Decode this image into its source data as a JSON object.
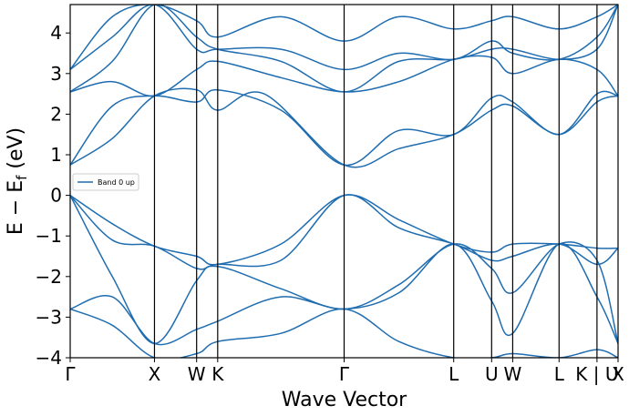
{
  "chart_data": {
    "type": "line",
    "xlabel": "Wave Vector",
    "ylabel_main": "E − E",
    "ylabel_sub": "f",
    "ylabel_unit": " (eV)",
    "ylim": [
      -4,
      4.7
    ],
    "yticks": [
      -4,
      -3,
      -2,
      -1,
      0,
      1,
      2,
      3,
      4
    ],
    "ytick_labels": [
      "−4",
      "−3",
      "−2",
      "−1",
      "0",
      "1",
      "2",
      "3",
      "4"
    ],
    "kpoints": [
      {
        "label": "Γ",
        "x": 0
      },
      {
        "label": "X",
        "x": 1.0
      },
      {
        "label": "W",
        "x": 1.5
      },
      {
        "label": "K",
        "x": 1.75
      },
      {
        "label": "Γ",
        "x": 3.25
      },
      {
        "label": "L",
        "x": 4.55
      },
      {
        "label": "U",
        "x": 5.0
      },
      {
        "label": "W",
        "x": 5.25
      },
      {
        "label": "L",
        "x": 5.8
      },
      {
        "label": "K | U",
        "x": 6.25
      },
      {
        "label": "X",
        "x": 6.5
      }
    ],
    "xlim": [
      0,
      6.5
    ],
    "legend": {
      "placement": "center-left",
      "entries": [
        {
          "name": "Band 0 up",
          "color": "#1f6db0"
        }
      ]
    },
    "band_color": "#1f6db0",
    "series": [
      {
        "values": [
          [
            0,
            0.75
          ],
          [
            0.5,
            1.4
          ],
          [
            1.0,
            2.45
          ],
          [
            1.5,
            2.6
          ],
          [
            1.75,
            2.1
          ],
          [
            2.3,
            2.5
          ],
          [
            3.25,
            0.75
          ],
          [
            3.9,
            1.15
          ],
          [
            4.55,
            1.5
          ],
          [
            5.0,
            2.1
          ],
          [
            5.25,
            2.2
          ],
          [
            5.8,
            1.5
          ],
          [
            6.25,
            2.3
          ],
          [
            6.5,
            2.45
          ]
        ]
      },
      {
        "values": [
          [
            0,
            0.75
          ],
          [
            0.5,
            2.2
          ],
          [
            1.0,
            2.45
          ],
          [
            1.5,
            2.3
          ],
          [
            1.75,
            2.6
          ],
          [
            2.5,
            2.1
          ],
          [
            3.25,
            0.75
          ],
          [
            3.9,
            1.6
          ],
          [
            4.55,
            1.5
          ],
          [
            5.0,
            2.4
          ],
          [
            5.25,
            2.3
          ],
          [
            5.8,
            1.5
          ],
          [
            6.25,
            2.5
          ],
          [
            6.5,
            2.45
          ]
        ]
      },
      {
        "values": [
          [
            0,
            2.55
          ],
          [
            0.5,
            2.8
          ],
          [
            1.0,
            2.45
          ],
          [
            1.5,
            3.1
          ],
          [
            1.75,
            3.3
          ],
          [
            2.5,
            2.9
          ],
          [
            3.25,
            2.55
          ],
          [
            3.9,
            2.8
          ],
          [
            4.55,
            3.35
          ],
          [
            5.0,
            3.4
          ],
          [
            5.25,
            3.0
          ],
          [
            5.8,
            3.35
          ],
          [
            6.25,
            3.1
          ],
          [
            6.5,
            2.45
          ]
        ]
      },
      {
        "values": [
          [
            0,
            2.55
          ],
          [
            0.5,
            3.3
          ],
          [
            1.0,
            4.7
          ],
          [
            1.5,
            3.9
          ],
          [
            1.75,
            3.6
          ],
          [
            2.5,
            3.3
          ],
          [
            3.25,
            2.55
          ],
          [
            3.9,
            3.3
          ],
          [
            4.55,
            3.35
          ],
          [
            5.0,
            3.6
          ],
          [
            5.25,
            3.6
          ],
          [
            5.8,
            3.35
          ],
          [
            6.25,
            3.6
          ],
          [
            6.5,
            4.7
          ]
        ]
      },
      {
        "values": [
          [
            0,
            3.1
          ],
          [
            0.5,
            3.9
          ],
          [
            1.0,
            4.7
          ],
          [
            1.5,
            3.6
          ],
          [
            1.75,
            3.6
          ],
          [
            2.5,
            3.6
          ],
          [
            3.25,
            3.1
          ],
          [
            3.9,
            3.5
          ],
          [
            4.55,
            3.35
          ],
          [
            5.0,
            3.8
          ],
          [
            5.25,
            3.5
          ],
          [
            5.8,
            3.35
          ],
          [
            6.25,
            3.9
          ],
          [
            6.5,
            4.7
          ]
        ]
      },
      {
        "values": [
          [
            0,
            3.1
          ],
          [
            0.5,
            4.4
          ],
          [
            1.0,
            4.7
          ],
          [
            1.5,
            4.3
          ],
          [
            1.75,
            3.9
          ],
          [
            2.5,
            4.4
          ],
          [
            3.25,
            3.8
          ],
          [
            3.9,
            4.4
          ],
          [
            4.55,
            4.1
          ],
          [
            5.0,
            4.3
          ],
          [
            5.25,
            4.4
          ],
          [
            5.8,
            4.1
          ],
          [
            6.25,
            4.4
          ],
          [
            6.5,
            4.7
          ]
        ]
      },
      {
        "values": [
          [
            0,
            0
          ],
          [
            0.5,
            -0.7
          ],
          [
            1.0,
            -1.25
          ],
          [
            1.5,
            -1.5
          ],
          [
            1.75,
            -1.7
          ],
          [
            2.5,
            -1.2
          ],
          [
            3.25,
            0
          ],
          [
            3.9,
            -0.6
          ],
          [
            4.55,
            -1.2
          ],
          [
            5.0,
            -1.4
          ],
          [
            5.25,
            -1.2
          ],
          [
            5.8,
            -1.2
          ],
          [
            6.25,
            -1.3
          ],
          [
            6.5,
            -1.3
          ]
        ]
      },
      {
        "values": [
          [
            0,
            0
          ],
          [
            0.5,
            -1.1
          ],
          [
            1.0,
            -1.25
          ],
          [
            1.5,
            -1.8
          ],
          [
            1.75,
            -1.7
          ],
          [
            2.5,
            -1.6
          ],
          [
            3.25,
            0
          ],
          [
            3.9,
            -0.8
          ],
          [
            4.55,
            -1.2
          ],
          [
            5.0,
            -1.6
          ],
          [
            5.25,
            -1.5
          ],
          [
            5.8,
            -1.2
          ],
          [
            6.25,
            -1.7
          ],
          [
            6.5,
            -1.3
          ]
        ]
      },
      {
        "values": [
          [
            0,
            0
          ],
          [
            0.5,
            -2.0
          ],
          [
            1.0,
            -3.65
          ],
          [
            1.5,
            -2.1
          ],
          [
            1.75,
            -1.75
          ],
          [
            2.5,
            -2.3
          ],
          [
            3.25,
            -2.8
          ],
          [
            3.9,
            -2.2
          ],
          [
            4.55,
            -1.2
          ],
          [
            5.0,
            -1.8
          ],
          [
            5.25,
            -2.4
          ],
          [
            5.8,
            -1.2
          ],
          [
            6.25,
            -1.6
          ],
          [
            6.5,
            -3.65
          ]
        ]
      },
      {
        "values": [
          [
            0,
            -2.8
          ],
          [
            0.5,
            -2.5
          ],
          [
            1.0,
            -3.65
          ],
          [
            1.5,
            -3.3
          ],
          [
            1.75,
            -3.1
          ],
          [
            2.5,
            -2.5
          ],
          [
            3.25,
            -2.8
          ],
          [
            3.9,
            -2.4
          ],
          [
            4.55,
            -1.2
          ],
          [
            5.0,
            -2.6
          ],
          [
            5.25,
            -3.4
          ],
          [
            5.8,
            -1.2
          ],
          [
            6.25,
            -2.5
          ],
          [
            6.5,
            -3.65
          ]
        ]
      },
      {
        "values": [
          [
            0,
            -2.8
          ],
          [
            0.5,
            -3.2
          ],
          [
            1.0,
            -4.0
          ],
          [
            1.5,
            -3.9
          ],
          [
            1.75,
            -3.6
          ],
          [
            2.5,
            -3.4
          ],
          [
            3.25,
            -2.8
          ],
          [
            3.9,
            -3.6
          ],
          [
            4.55,
            -4.0
          ],
          [
            5.0,
            -4.0
          ],
          [
            5.25,
            -3.9
          ],
          [
            5.8,
            -4.0
          ],
          [
            6.25,
            -3.8
          ],
          [
            6.5,
            -4.0
          ]
        ]
      }
    ]
  }
}
